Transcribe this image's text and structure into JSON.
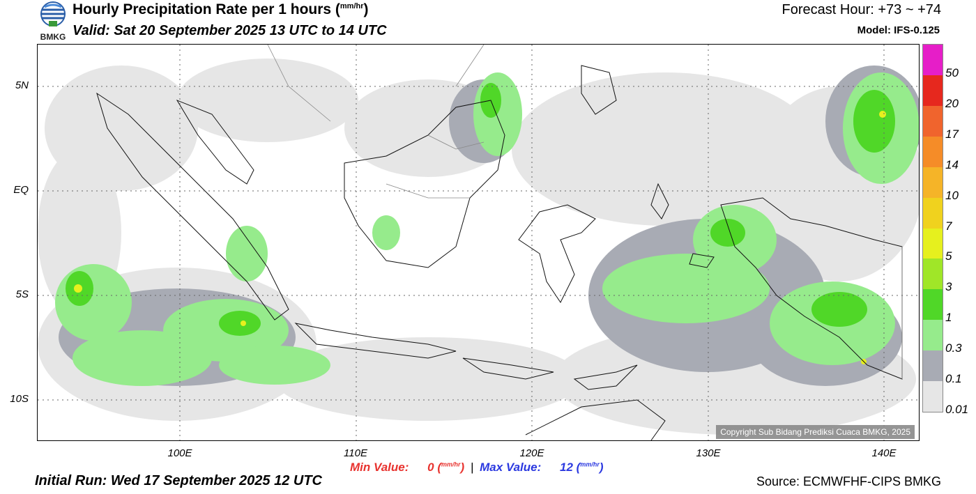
{
  "header": {
    "logo_text": "BMKG",
    "title": "Hourly Precipitation Rate per 1 hours (",
    "title_unit": "mm/hr",
    "title_close": ")",
    "valid": "Valid: Sat 20 September 2025 13 UTC to 14 UTC",
    "forecast_hour": "Forecast Hour: +73 ~ +74",
    "model": "Model: IFS-0.125"
  },
  "map": {
    "copyright": "Copyright Sub Bidang Prediksi Cuaca BMKG, 2025",
    "lat_labels": [
      "5N",
      "EQ",
      "5S",
      "10S"
    ],
    "lon_labels": [
      "100E",
      "110E",
      "120E",
      "130E",
      "140E"
    ]
  },
  "colorbar": {
    "labels": [
      "50",
      "20",
      "17",
      "14",
      "10",
      "7",
      "5",
      "3",
      "1",
      "0.3",
      "0.1",
      "0.01"
    ],
    "colors": [
      "#e61ec8",
      "#e6281e",
      "#f0642d",
      "#f58c28",
      "#f5b428",
      "#f0d21e",
      "#e6f01e",
      "#a0e628",
      "#50d728",
      "#96eb8c",
      "#a8abb4",
      "#e6e6e6"
    ]
  },
  "footer": {
    "min_label": "Min Value:",
    "min_value": "0",
    "max_label": "Max Value:",
    "max_value": "12",
    "unit": "mm/hr",
    "initial_run": "Initial Run: Wed 17 September 2025 12 UTC",
    "source": "Source: ECMWFHF-CIPS BMKG"
  }
}
